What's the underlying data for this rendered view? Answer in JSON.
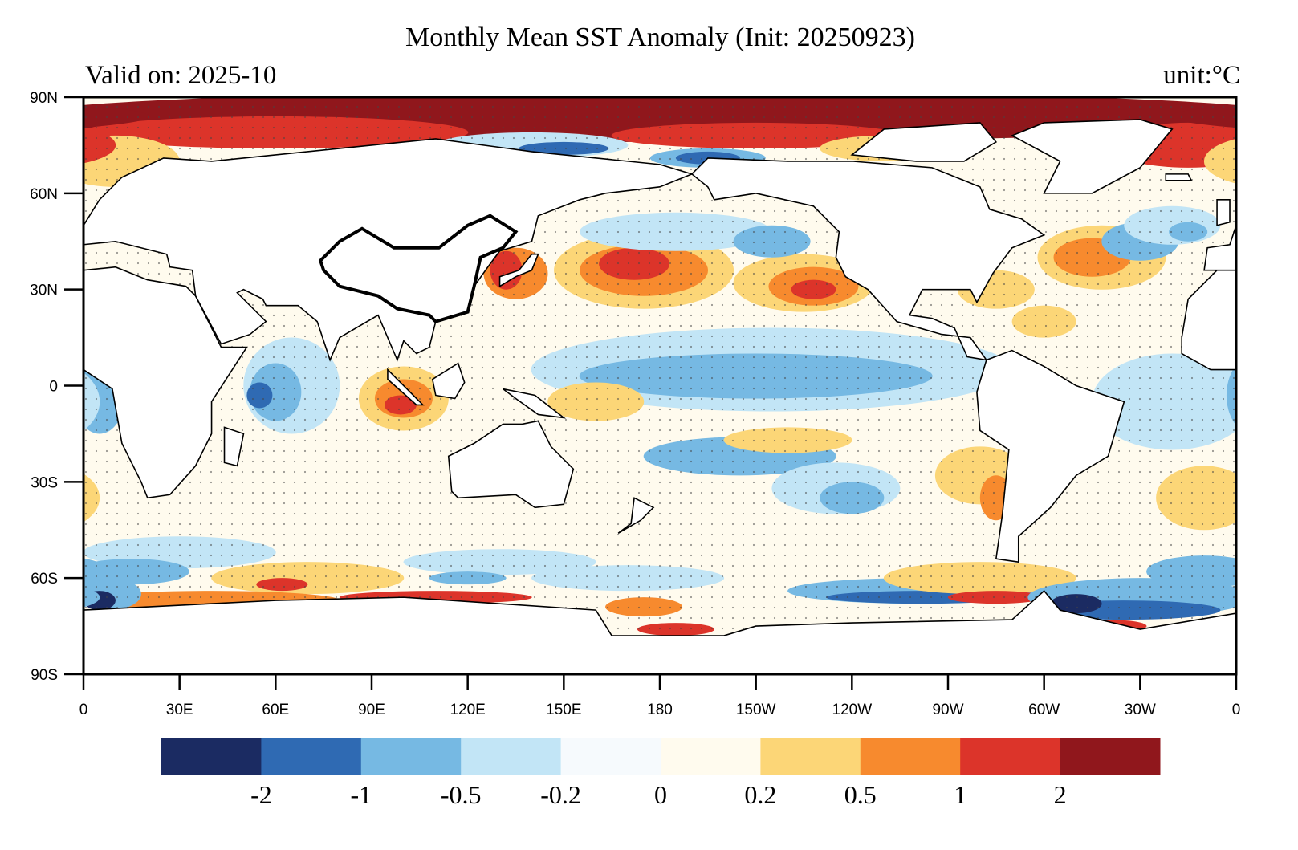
{
  "title": "Monthly Mean SST Anomaly (Init: 20250923)",
  "valid_label": "Valid on: 2025-10",
  "unit_label": "unit:°C",
  "lat_ticks": [
    "90N",
    "60N",
    "30N",
    "0",
    "30S",
    "60S",
    "90S"
  ],
  "lon_ticks": [
    "0",
    "30E",
    "60E",
    "90E",
    "120E",
    "150E",
    "180",
    "150W",
    "120W",
    "90W",
    "60W",
    "30W",
    "0"
  ],
  "colorbar": {
    "colors": [
      "#1b2b62",
      "#2f6ab3",
      "#76b9e3",
      "#c2e5f6",
      "#f6fafd",
      "#fffbee",
      "#fcd677",
      "#f78a2e",
      "#dc342a",
      "#90171c"
    ],
    "labels": [
      "-2",
      "-1",
      "-0.5",
      "-0.2",
      "0",
      "0.2",
      "0.5",
      "1",
      "2"
    ]
  }
}
